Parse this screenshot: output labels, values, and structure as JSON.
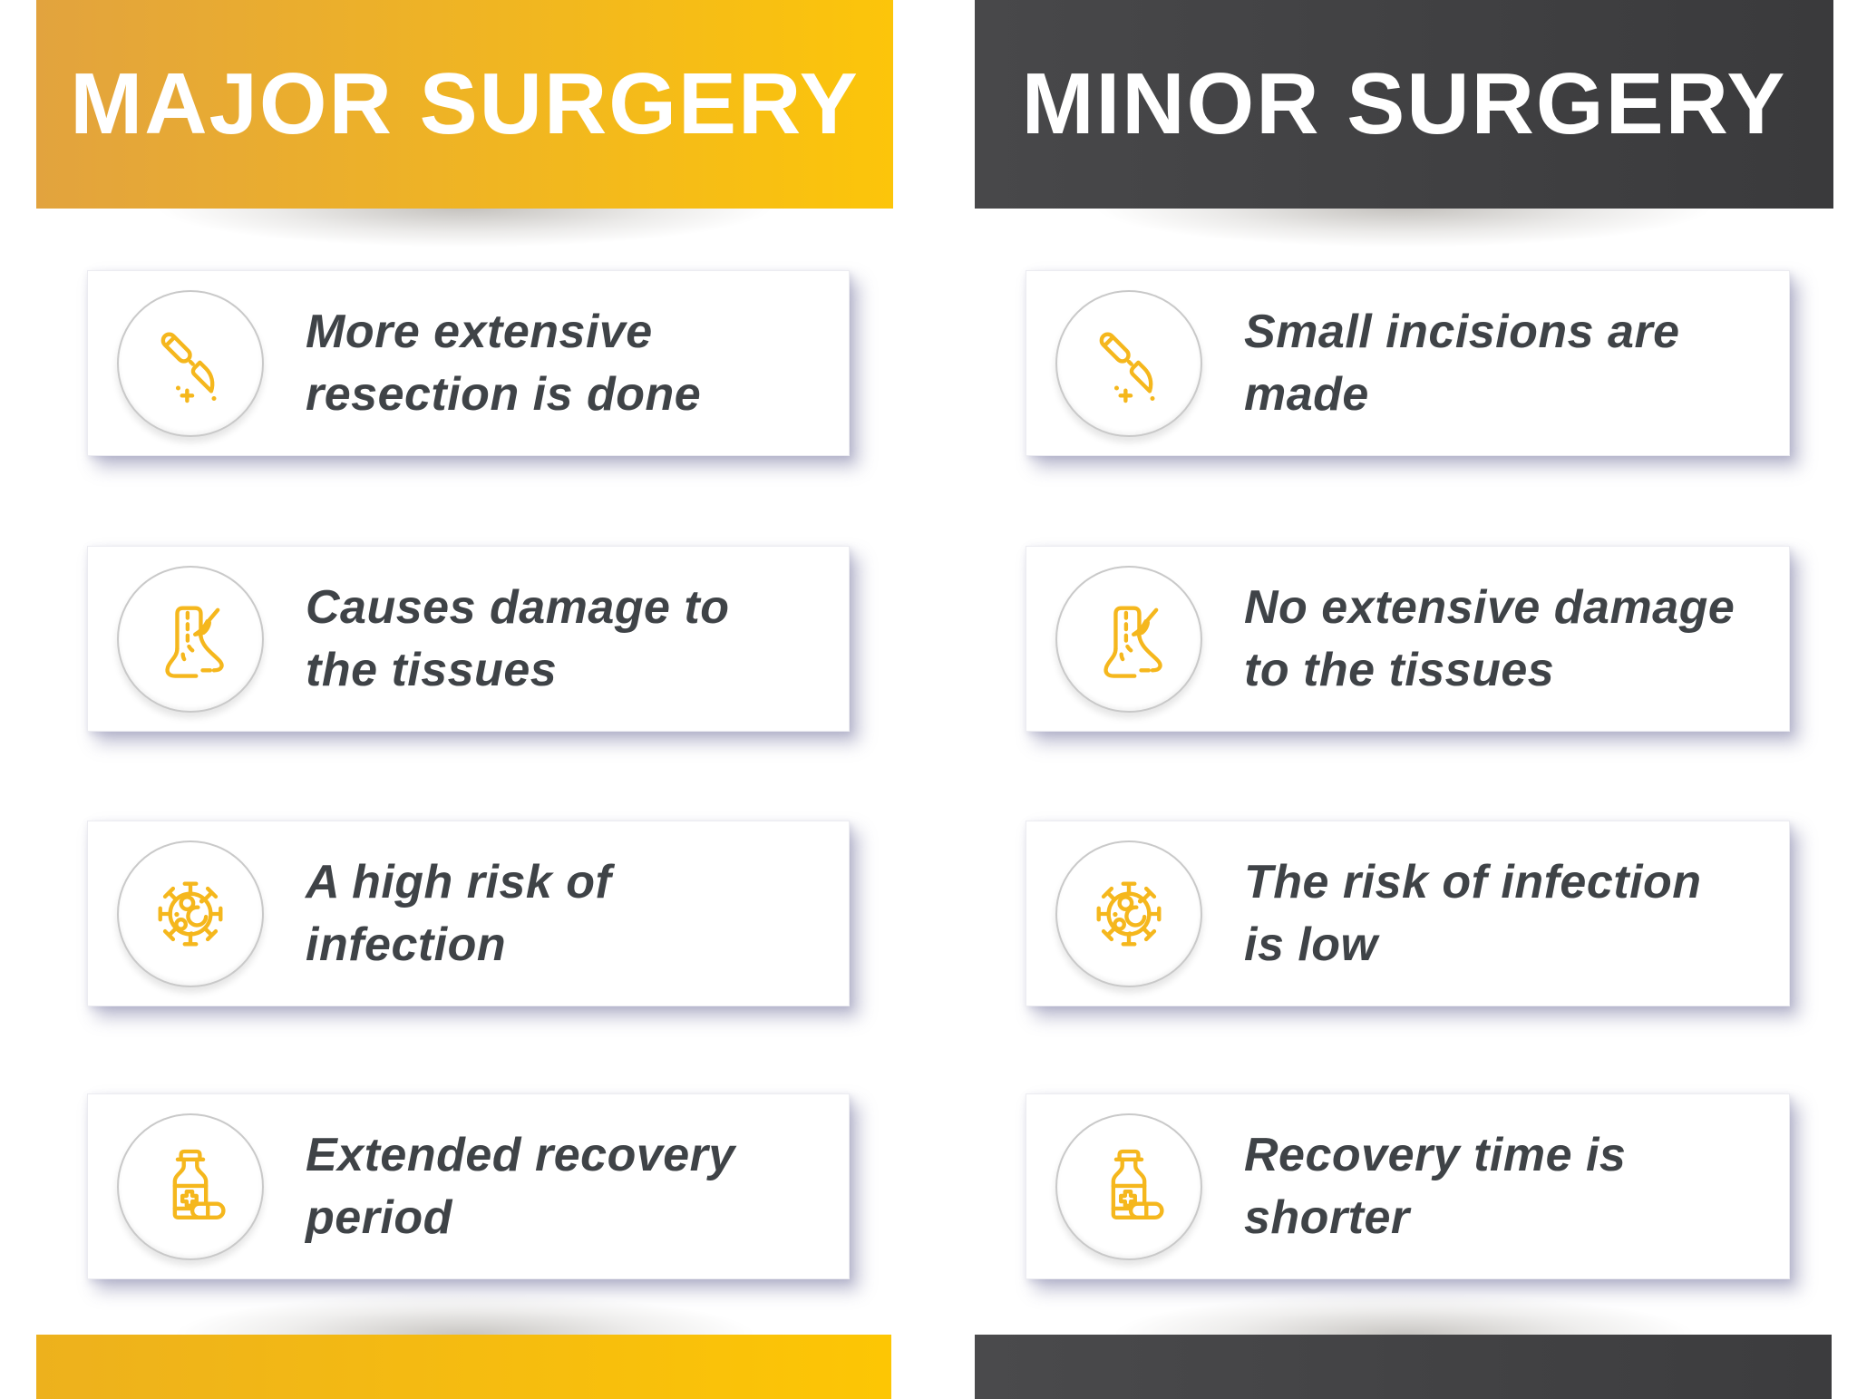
{
  "infographic": {
    "columns": [
      {
        "title": "MAJOR SURGERY",
        "theme": "yellow",
        "items": [
          {
            "icon": "scalpel",
            "text": "More extensive\nresection is done"
          },
          {
            "icon": "foot-incision",
            "text": "Causes damage to\nthe tissues"
          },
          {
            "icon": "virus",
            "text": "A high risk of\ninfection"
          },
          {
            "icon": "medicine-bottle",
            "text": "Extended recovery\nperiod"
          }
        ]
      },
      {
        "title": "MINOR SURGERY",
        "theme": "dark",
        "items": [
          {
            "icon": "scalpel",
            "text": "Small incisions are\nmade"
          },
          {
            "icon": "foot-incision",
            "text": "No extensive damage\nto the tissues"
          },
          {
            "icon": "virus",
            "text": "The risk of infection\nis low"
          },
          {
            "icon": "medicine-bottle",
            "text": "Recovery time is\nshorter"
          }
        ]
      }
    ],
    "themes": {
      "yellow": {
        "header_start": "#e2a33e",
        "header_end": "#fcc50a",
        "bar_start": "#edb11d",
        "bar_end": "#fdc604"
      },
      "dark": {
        "header_start": "#48484a",
        "header_end": "#3a3a3c",
        "bar_start": "#4a4a4c",
        "bar_end": "#3c3c3e"
      }
    },
    "colors": {
      "icon_stroke": "#f5b71d",
      "card_text": "#3f4347",
      "title_text": "#ffffff",
      "card_background": "#ffffff",
      "circle_border": "#c9c9c9"
    },
    "layout": {
      "card_tops": [
        298,
        602,
        905,
        1206
      ]
    }
  }
}
